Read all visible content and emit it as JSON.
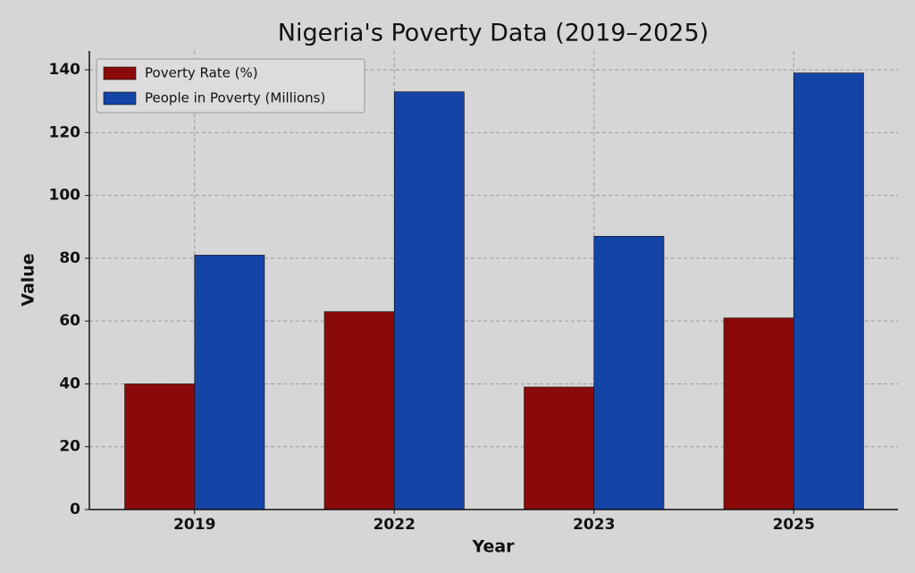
{
  "chart_data": {
    "type": "bar",
    "title": "Nigeria's Poverty Data (2019–2025)",
    "x_label": "Year",
    "y_label": "Value",
    "categories": [
      "2019",
      "2022",
      "2023",
      "2025"
    ],
    "series": [
      {
        "name": "Poverty Rate (%)",
        "color": "#8a0a0a",
        "values": [
          40,
          63,
          39,
          61
        ]
      },
      {
        "name": "People in Poverty (Millions)",
        "color": "#1444a6",
        "values": [
          81,
          133,
          87,
          139
        ]
      }
    ],
    "ylim": [
      0,
      146
    ],
    "yticks": [
      0,
      20,
      40,
      60,
      80,
      100,
      120,
      140
    ],
    "grid": true,
    "legend": "upper-left"
  }
}
